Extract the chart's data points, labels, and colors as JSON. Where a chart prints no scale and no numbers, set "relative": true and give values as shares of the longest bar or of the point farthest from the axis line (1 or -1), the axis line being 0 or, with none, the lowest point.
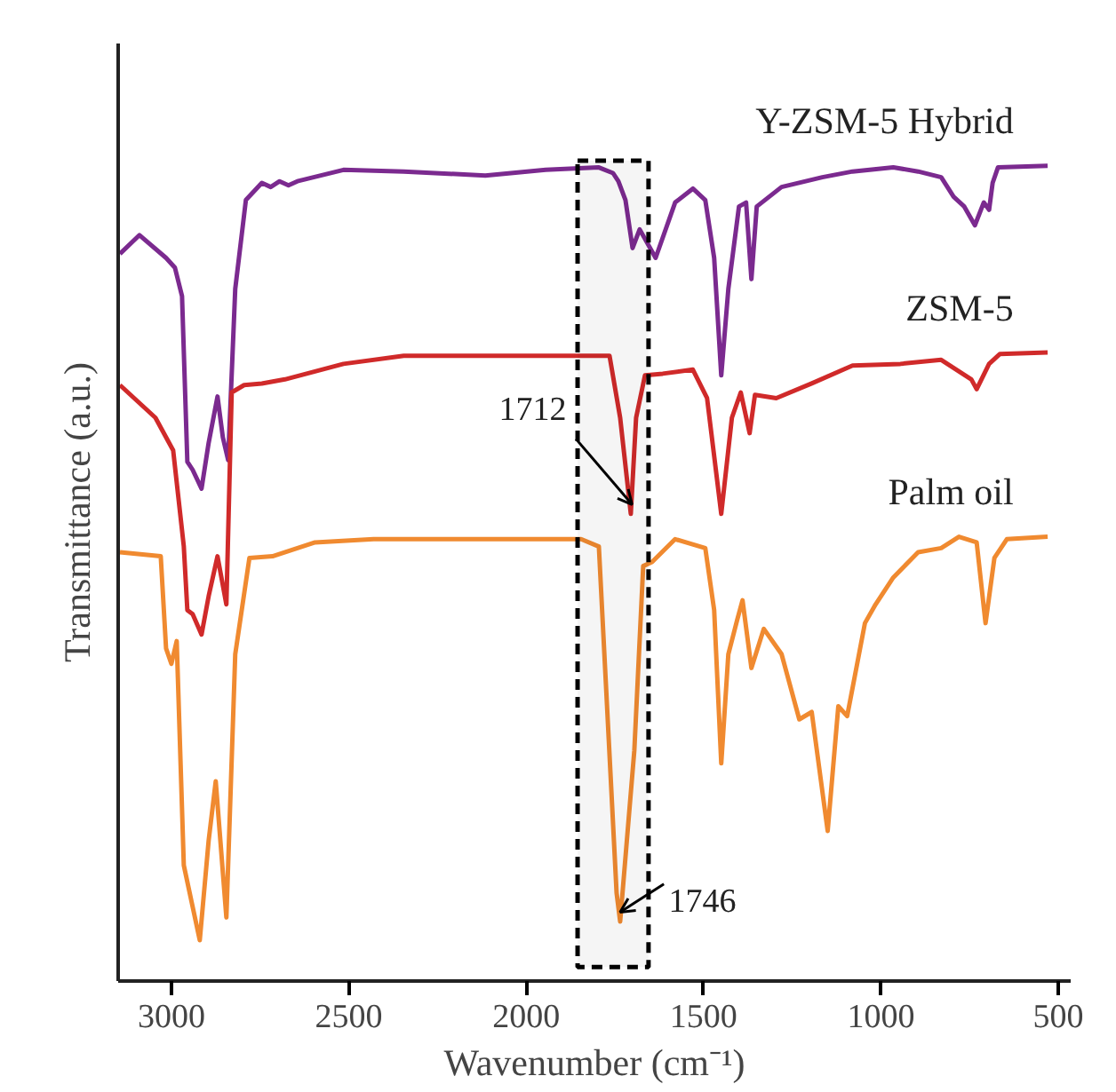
{
  "chart_data": {
    "type": "line",
    "relative": true,
    "xlabel": "Wavenumber (cm⁻¹)",
    "ylabel": "Transmittance (a.u.)",
    "xlim": [
      3150,
      465
    ],
    "xticks": [
      3000,
      2500,
      2000,
      1500,
      1000,
      500
    ],
    "grid": false,
    "series": [
      {
        "name": "Y-ZSM-5 Hybrid",
        "color": "#7b2a8f",
        "x": [
          3145,
          3090,
          3015,
          2990,
          2970,
          2955,
          2940,
          2915,
          2895,
          2870,
          2855,
          2840,
          2820,
          2790,
          2745,
          2720,
          2695,
          2670,
          2645,
          2515,
          2345,
          2115,
          1945,
          1795,
          1755,
          1740,
          1720,
          1700,
          1680,
          1635,
          1580,
          1530,
          1495,
          1470,
          1450,
          1430,
          1400,
          1380,
          1365,
          1350,
          1280,
          1165,
          1080,
          965,
          895,
          830,
          795,
          765,
          735,
          710,
          695,
          685,
          670,
          530
        ],
        "values": [
          0.892,
          0.915,
          0.887,
          0.875,
          0.84,
          0.637,
          0.627,
          0.604,
          0.66,
          0.717,
          0.667,
          0.639,
          0.849,
          0.958,
          0.979,
          0.974,
          0.981,
          0.976,
          0.981,
          0.995,
          0.993,
          0.988,
          0.995,
          0.998,
          0.991,
          0.981,
          0.958,
          0.899,
          0.922,
          0.887,
          0.955,
          0.972,
          0.958,
          0.887,
          0.743,
          0.849,
          0.95,
          0.955,
          0.861,
          0.95,
          0.974,
          0.986,
          0.993,
          0.998,
          0.993,
          0.986,
          0.962,
          0.95,
          0.927,
          0.955,
          0.946,
          0.979,
          0.998,
          1.0
        ]
      },
      {
        "name": "ZSM-5",
        "color": "#d02a2a",
        "x": [
          3145,
          3045,
          2995,
          2965,
          2955,
          2940,
          2915,
          2895,
          2870,
          2845,
          2830,
          2795,
          2745,
          2680,
          2515,
          2345,
          2015,
          1765,
          1735,
          1705,
          1690,
          1665,
          1615,
          1530,
          1490,
          1450,
          1420,
          1395,
          1370,
          1355,
          1295,
          1195,
          1080,
          945,
          830,
          745,
          730,
          695,
          665,
          530
        ],
        "values": [
          0.731,
          0.691,
          0.651,
          0.533,
          0.455,
          0.45,
          0.425,
          0.472,
          0.521,
          0.462,
          0.722,
          0.731,
          0.733,
          0.738,
          0.757,
          0.767,
          0.767,
          0.767,
          0.691,
          0.573,
          0.691,
          0.743,
          0.745,
          0.75,
          0.715,
          0.573,
          0.691,
          0.722,
          0.672,
          0.719,
          0.715,
          0.733,
          0.755,
          0.757,
          0.762,
          0.738,
          0.726,
          0.757,
          0.769,
          0.771
        ]
      },
      {
        "name": "Palm oil",
        "color": "#f08a30",
        "x": [
          3145,
          3030,
          3015,
          3000,
          2985,
          2965,
          2920,
          2895,
          2875,
          2845,
          2820,
          2780,
          2715,
          2595,
          2430,
          2180,
          1845,
          1795,
          1745,
          1735,
          1695,
          1670,
          1645,
          1580,
          1495,
          1470,
          1450,
          1430,
          1405,
          1390,
          1365,
          1330,
          1280,
          1230,
          1195,
          1150,
          1120,
          1095,
          1045,
          1015,
          965,
          895,
          830,
          780,
          730,
          705,
          680,
          645,
          530
        ],
        "values": [
          0.526,
          0.521,
          0.408,
          0.389,
          0.417,
          0.142,
          0.05,
          0.172,
          0.245,
          0.078,
          0.401,
          0.519,
          0.521,
          0.538,
          0.542,
          0.542,
          0.542,
          0.533,
          0.108,
          0.073,
          0.283,
          0.509,
          0.514,
          0.542,
          0.531,
          0.455,
          0.267,
          0.401,
          0.443,
          0.467,
          0.384,
          0.432,
          0.401,
          0.321,
          0.33,
          0.184,
          0.337,
          0.325,
          0.439,
          0.462,
          0.495,
          0.526,
          0.531,
          0.545,
          0.538,
          0.439,
          0.519,
          0.542,
          0.545
        ]
      }
    ],
    "bands": [
      {
        "axis": "x",
        "from": 1855,
        "to": 1655,
        "color": "#000000"
      }
    ],
    "annotations": [
      {
        "text": "1712",
        "x": 1712,
        "y": 0.573
      },
      {
        "text": "1746",
        "x": 1746,
        "y": 0.073
      }
    ]
  }
}
